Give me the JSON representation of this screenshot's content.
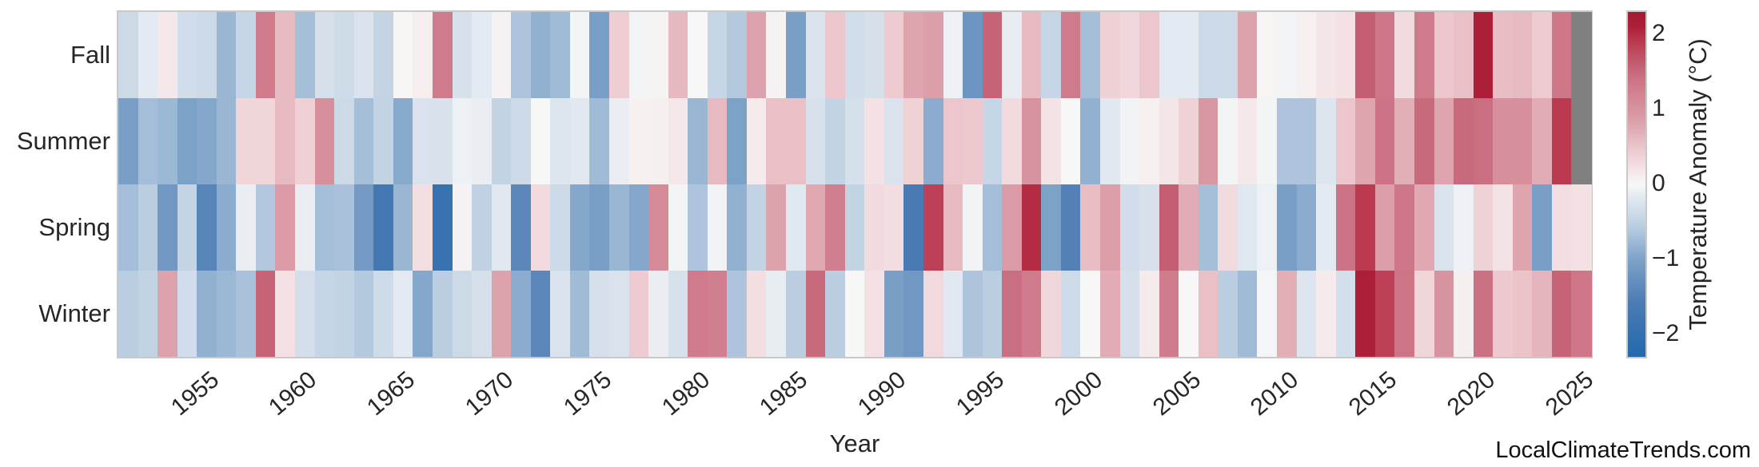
{
  "watermark": "LocalClimateTrends.com",
  "chart_data": {
    "type": "heatmap",
    "title": "",
    "xlabel": "Year",
    "ylabel": "",
    "rows": [
      "Fall",
      "Summer",
      "Spring",
      "Winter"
    ],
    "years": [
      1951,
      1952,
      1953,
      1954,
      1955,
      1956,
      1957,
      1958,
      1959,
      1960,
      1961,
      1962,
      1963,
      1964,
      1965,
      1966,
      1967,
      1968,
      1969,
      1970,
      1971,
      1972,
      1973,
      1974,
      1975,
      1976,
      1977,
      1978,
      1979,
      1980,
      1981,
      1982,
      1983,
      1984,
      1985,
      1986,
      1987,
      1988,
      1989,
      1990,
      1991,
      1992,
      1993,
      1994,
      1995,
      1996,
      1997,
      1998,
      1999,
      2000,
      2001,
      2002,
      2003,
      2004,
      2005,
      2006,
      2007,
      2008,
      2009,
      2010,
      2011,
      2012,
      2013,
      2014,
      2015,
      2016,
      2017,
      2018,
      2019,
      2020,
      2021,
      2022,
      2023,
      2024,
      2025
    ],
    "xticks": [
      1955,
      1960,
      1965,
      1970,
      1975,
      1980,
      1985,
      1990,
      1995,
      2000,
      2005,
      2010,
      2015,
      2020,
      2025
    ],
    "series": [
      {
        "name": "Fall",
        "values": [
          -0.4,
          -0.15,
          0.15,
          -0.35,
          -0.4,
          -0.8,
          -0.45,
          1.3,
          0.6,
          -0.7,
          -0.3,
          -0.38,
          -0.25,
          -0.48,
          0.03,
          0.1,
          1.3,
          -0.28,
          -0.15,
          0.05,
          -0.65,
          -0.85,
          -0.75,
          -0.03,
          -1.05,
          0.42,
          -0.03,
          0.04,
          0.62,
          0.0,
          -0.45,
          -0.6,
          0.82,
          0.06,
          -1.05,
          -0.25,
          0.5,
          -0.35,
          -0.3,
          0.45,
          0.78,
          0.85,
          -0.08,
          -1.2,
          1.55,
          -0.12,
          0.6,
          -0.45,
          1.3,
          -0.7,
          0.4,
          0.32,
          0.5,
          -0.15,
          -0.15,
          -0.4,
          -0.4,
          0.8,
          0.03,
          -0.03,
          0.07,
          0.18,
          0.22,
          1.6,
          1.35,
          0.28,
          1.3,
          0.5,
          0.55,
          2.1,
          0.58,
          0.6,
          0.45,
          1.35,
          null
        ]
      },
      {
        "name": "Summer",
        "values": [
          -1.05,
          -0.72,
          -0.78,
          -1.0,
          -0.95,
          -0.8,
          0.35,
          0.35,
          0.6,
          0.4,
          1.05,
          -0.4,
          -0.7,
          -0.5,
          -0.92,
          -0.25,
          -0.27,
          -0.08,
          -0.1,
          -0.5,
          -0.4,
          0.0,
          -0.22,
          -0.18,
          -0.75,
          -0.1,
          0.07,
          0.08,
          0.15,
          -0.8,
          0.6,
          -1.0,
          0.12,
          0.55,
          0.55,
          -0.28,
          -0.5,
          -0.3,
          0.22,
          -0.25,
          0.38,
          -0.9,
          0.5,
          0.48,
          -0.45,
          0.28,
          1.0,
          0.2,
          0.0,
          -0.85,
          -0.18,
          -0.05,
          0.07,
          0.18,
          0.38,
          0.95,
          -0.03,
          0.15,
          -0.03,
          -0.65,
          -0.65,
          -0.22,
          0.5,
          0.78,
          1.4,
          0.7,
          1.5,
          0.78,
          1.5,
          1.45,
          1.05,
          1.05,
          0.72,
          1.9,
          null
        ]
      },
      {
        "name": "Spring",
        "values": [
          -0.72,
          -0.55,
          -1.15,
          -0.48,
          -1.45,
          -0.9,
          -0.1,
          -0.62,
          0.9,
          -0.1,
          -0.72,
          -0.68,
          -1.1,
          -1.7,
          -0.8,
          0.25,
          -1.95,
          0.05,
          -0.52,
          -0.18,
          -1.4,
          0.3,
          -0.4,
          -0.95,
          -1.05,
          -0.8,
          -0.95,
          1.1,
          -0.03,
          -0.65,
          -0.05,
          -0.85,
          -0.5,
          0.8,
          -0.2,
          0.75,
          1.25,
          -0.5,
          0.28,
          0.26,
          -1.6,
          1.85,
          0.6,
          -0.05,
          -0.72,
          0.9,
          2.0,
          -1.0,
          -1.5,
          0.58,
          0.85,
          -0.35,
          -0.28,
          1.6,
          0.72,
          -0.7,
          0.28,
          -0.2,
          -0.08,
          -1.05,
          -0.9,
          -0.15,
          1.4,
          1.9,
          0.85,
          1.35,
          0.75,
          -0.25,
          -0.08,
          0.38,
          0.2,
          0.78,
          -1.05,
          0.25,
          0.22
        ]
      },
      {
        "name": "Winter",
        "values": [
          -0.55,
          -0.5,
          0.8,
          -0.35,
          -0.85,
          -0.78,
          -0.68,
          1.55,
          0.22,
          -0.33,
          -0.45,
          -0.5,
          -0.6,
          -0.38,
          -0.15,
          -0.95,
          -0.55,
          -0.4,
          -0.3,
          0.8,
          -0.9,
          -1.4,
          -0.25,
          -0.75,
          -0.3,
          -0.25,
          0.45,
          -0.1,
          -0.28,
          1.3,
          1.25,
          -0.65,
          0.25,
          -0.12,
          -0.55,
          1.5,
          -0.55,
          0.0,
          0.22,
          -1.05,
          -1.15,
          0.3,
          -0.18,
          -0.65,
          -0.55,
          1.45,
          1.3,
          0.32,
          -0.38,
          0.0,
          0.72,
          -0.3,
          0.12,
          1.28,
          0.0,
          0.55,
          -0.55,
          -0.75,
          -0.02,
          0.7,
          -0.22,
          0.12,
          -0.32,
          2.1,
          1.85,
          1.38,
          0.35,
          1.0,
          0.08,
          1.42,
          0.48,
          0.52,
          0.65,
          1.55,
          1.35
        ]
      }
    ],
    "missing_value_color": "#808080",
    "grid": false,
    "colorbar": {
      "label": "Temperature Anomaly (°C)",
      "ticks": [
        2,
        1,
        0,
        -1,
        -2
      ],
      "vmin": -2.3,
      "vmax": 2.3,
      "position": "right",
      "colormap_stops": [
        [
          -2.3,
          "#2369ad"
        ],
        [
          -1.6,
          "#4a7ab4"
        ],
        [
          -1.0,
          "#7da2c8"
        ],
        [
          -0.5,
          "#c2d3e4"
        ],
        [
          -0.15,
          "#e4eaf1"
        ],
        [
          0.0,
          "#f7f7f7"
        ],
        [
          0.2,
          "#f4e3e5"
        ],
        [
          0.5,
          "#ecc6cc"
        ],
        [
          0.8,
          "#dda3ad"
        ],
        [
          1.05,
          "#d68f9b"
        ],
        [
          1.4,
          "#cc7386"
        ],
        [
          1.6,
          "#c45e72"
        ],
        [
          1.9,
          "#bb3a50"
        ],
        [
          2.1,
          "#ad1e38"
        ],
        [
          2.3,
          "#a31b33"
        ]
      ]
    }
  }
}
